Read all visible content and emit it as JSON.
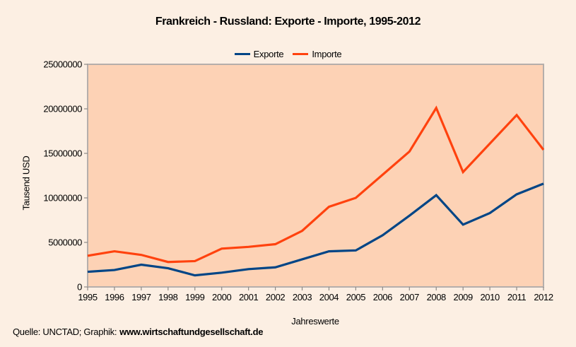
{
  "colors": {
    "page_background": "#fcefe3",
    "plot_background": "#fdd2b5",
    "plot_border": "#b5aeab",
    "axis": "#8f8a86",
    "text": "#000000",
    "exporte_line": "#004586",
    "importe_line": "#ff420e"
  },
  "footer": {
    "source_prefix": "Quelle: UNCTAD; Graphik:",
    "source_url": "www.wirtschaftundgesellschaft.de"
  },
  "chart_data": {
    "type": "line",
    "title": "Frankreich - Russland: Exporte - Importe, 1995-2012",
    "xlabel": "Jahreswerte",
    "ylabel": "Tausend USD",
    "x": [
      1995,
      1996,
      1997,
      1998,
      1999,
      2000,
      2001,
      2002,
      2003,
      2004,
      2005,
      2006,
      2007,
      2008,
      2009,
      2010,
      2011,
      2012
    ],
    "ylim": [
      0,
      25000000
    ],
    "y_ticks": [
      0,
      5000000,
      10000000,
      15000000,
      20000000,
      25000000
    ],
    "grid": false,
    "legend_position": "top-center",
    "series": [
      {
        "name": "Exporte",
        "color": "#004586",
        "values": [
          1700000,
          1900000,
          2500000,
          2100000,
          1300000,
          1600000,
          2000000,
          2200000,
          3100000,
          4000000,
          4100000,
          5800000,
          8000000,
          10300000,
          7000000,
          8300000,
          10400000,
          11600000
        ]
      },
      {
        "name": "Importe",
        "color": "#ff420e",
        "values": [
          3500000,
          4000000,
          3600000,
          2800000,
          2900000,
          4300000,
          4500000,
          4800000,
          6300000,
          9000000,
          10000000,
          12600000,
          15200000,
          20100000,
          12900000,
          16100000,
          19300000,
          15400000
        ]
      }
    ]
  }
}
